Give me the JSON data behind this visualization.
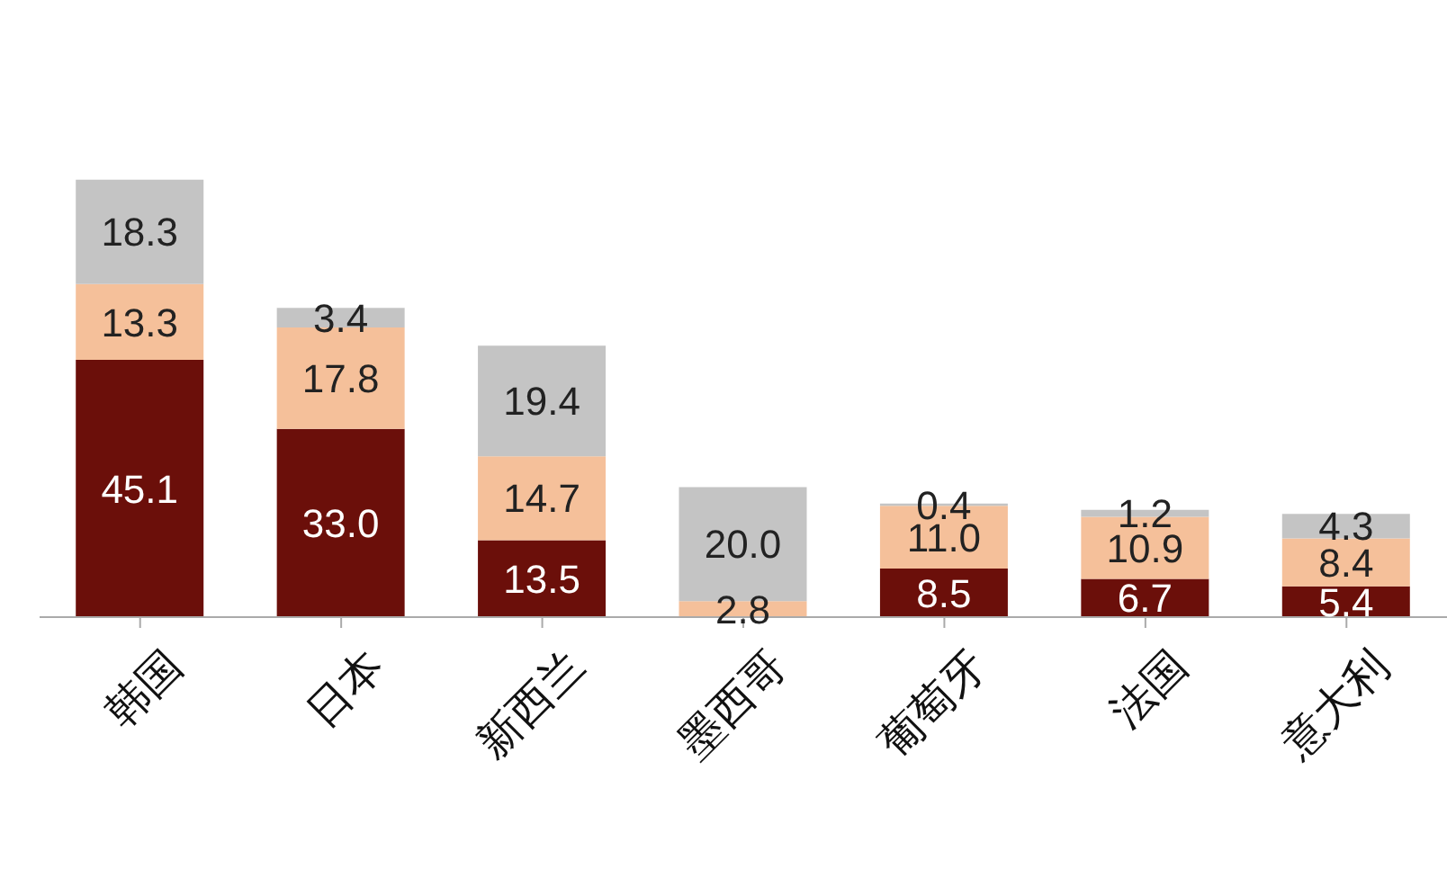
{
  "chart_data": {
    "type": "bar",
    "stacked": true,
    "categories": [
      "韩国",
      "日本",
      "新西兰",
      "墨西哥",
      "葡萄牙",
      "法国",
      "意大利"
    ],
    "series": [
      {
        "color": "#6b0f0a",
        "values": [
          45.1,
          33.0,
          13.5,
          null,
          8.5,
          6.7,
          5.4
        ],
        "value_labels": [
          "45.1",
          "33.0",
          "13.5",
          null,
          "8.5",
          "6.7",
          "5.4"
        ]
      },
      {
        "color": "#f5c09a",
        "values": [
          13.3,
          17.8,
          14.7,
          2.8,
          11.0,
          10.9,
          8.4
        ],
        "value_labels": [
          "13.3",
          "17.8",
          "14.7",
          "2.8",
          "11.0",
          "10.9",
          "8.4"
        ]
      },
      {
        "color": "#c4c4c4",
        "values": [
          18.3,
          3.4,
          19.4,
          20.0,
          0.4,
          1.2,
          4.3
        ],
        "value_labels": [
          "18.3",
          "3.4",
          "19.4",
          "20.0",
          "0.4",
          "1.2",
          "4.3"
        ]
      }
    ]
  }
}
